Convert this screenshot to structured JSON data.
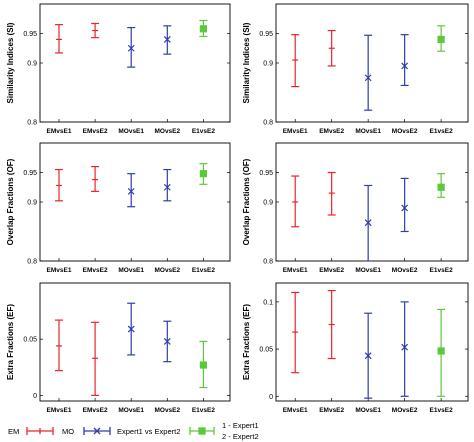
{
  "chart_data": [
    {
      "type": "errorbar",
      "ylabel": "Similarity Indices (SI)",
      "ylim": [
        0.8,
        1.0
      ],
      "yticks": [
        0.8,
        0.9,
        0.95
      ],
      "categories": [
        "EMvsE1",
        "EMvsE2",
        "MOvsE1",
        "MOvsE2",
        "E1vsE2"
      ],
      "series": [
        "EM",
        "EM",
        "MO",
        "MO",
        "Expert1 vs Expert2"
      ],
      "values": [
        0.94,
        0.955,
        0.925,
        0.94,
        0.958
      ],
      "low": [
        0.917,
        0.943,
        0.893,
        0.915,
        0.945
      ],
      "high": [
        0.965,
        0.967,
        0.96,
        0.963,
        0.972
      ]
    },
    {
      "type": "errorbar",
      "ylabel": "Similarity Indices (SI)",
      "ylim": [
        0.8,
        1.0
      ],
      "yticks": [
        0.8,
        0.9,
        0.95
      ],
      "categories": [
        "EMvsE1",
        "EMvsE2",
        "MOvsE1",
        "MOvsE2",
        "E1vsE2"
      ],
      "series": [
        "EM",
        "EM",
        "MO",
        "MO",
        "Expert1 vs Expert2"
      ],
      "values": [
        0.905,
        0.925,
        0.875,
        0.895,
        0.94
      ],
      "low": [
        0.86,
        0.895,
        0.82,
        0.862,
        0.92
      ],
      "high": [
        0.948,
        0.955,
        0.947,
        0.948,
        0.963
      ]
    },
    {
      "type": "errorbar",
      "ylabel": "Overlap Fractions (OF)",
      "ylim": [
        0.8,
        1.0
      ],
      "yticks": [
        0.8,
        0.9,
        0.95
      ],
      "categories": [
        "EMvsE1",
        "EMvsE2",
        "MOvsE1",
        "MOvsE2",
        "E1vsE2"
      ],
      "series": [
        "EM",
        "EM",
        "MO",
        "MO",
        "Expert1 vs Expert2"
      ],
      "values": [
        0.928,
        0.938,
        0.918,
        0.925,
        0.948
      ],
      "low": [
        0.902,
        0.918,
        0.892,
        0.902,
        0.93
      ],
      "high": [
        0.955,
        0.96,
        0.948,
        0.955,
        0.965
      ]
    },
    {
      "type": "errorbar",
      "ylabel": "Overlap Fractions (OF)",
      "ylim": [
        0.8,
        1.0
      ],
      "yticks": [
        0.8,
        0.9,
        0.95
      ],
      "categories": [
        "EMvsE1",
        "EMvsE2",
        "MOvsE1",
        "MOvsE2",
        "E1vsE2"
      ],
      "series": [
        "EM",
        "EM",
        "MO",
        "MO",
        "Expert1 vs Expert2"
      ],
      "values": [
        0.9,
        0.915,
        0.865,
        0.89,
        0.925
      ],
      "low": [
        0.858,
        0.878,
        0.8,
        0.85,
        0.908
      ],
      "high": [
        0.944,
        0.95,
        0.928,
        0.94,
        0.948
      ]
    },
    {
      "type": "errorbar",
      "ylabel": "Extra Fractions (EF)",
      "ylim": [
        -0.005,
        0.1
      ],
      "yticks": [
        0,
        0.05
      ],
      "categories": [
        "EMvsE1",
        "EMvsE2",
        "MOvsE1",
        "MOvsE2",
        "E1vsE2"
      ],
      "series": [
        "EM",
        "EM",
        "MO",
        "MO",
        "Expert1 vs Expert2"
      ],
      "values": [
        0.044,
        0.033,
        0.059,
        0.048,
        0.027
      ],
      "low": [
        0.022,
        0.0,
        0.036,
        0.03,
        0.007
      ],
      "high": [
        0.067,
        0.065,
        0.082,
        0.066,
        0.048
      ]
    },
    {
      "type": "errorbar",
      "ylabel": "Extra Fractions (EF)",
      "ylim": [
        -0.005,
        0.12
      ],
      "yticks": [
        0,
        0.05,
        0.1
      ],
      "categories": [
        "EMvsE1",
        "EMvsE2",
        "MOvsE1",
        "MOvsE2",
        "E1vsE2"
      ],
      "series": [
        "EM",
        "EM",
        "MO",
        "MO",
        "Expert1 vs Expert2"
      ],
      "values": [
        0.068,
        0.076,
        0.043,
        0.052,
        0.048
      ],
      "low": [
        0.025,
        0.04,
        -0.002,
        0.0,
        0.0
      ],
      "high": [
        0.11,
        0.112,
        0.088,
        0.1,
        0.092
      ]
    }
  ],
  "legend": {
    "items": [
      {
        "label": "EM",
        "color": "#e8262a",
        "marker": "plus"
      },
      {
        "label": "MO",
        "color": "#2f3ea8",
        "marker": "x"
      },
      {
        "label": "Expert1 vs Expert2",
        "color": "#5cc93a",
        "marker": "square"
      }
    ],
    "notes": [
      "1 - Expert1",
      "2 - Expert2"
    ]
  },
  "colors": {
    "EM": "#e8262a",
    "MO": "#2f3ea8",
    "Expert1 vs Expert2": "#5cc93a"
  }
}
